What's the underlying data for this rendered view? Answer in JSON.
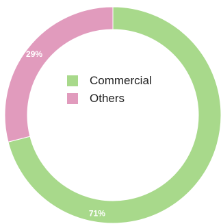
{
  "chart_data": {
    "type": "pie",
    "donut": true,
    "categories": [
      "Commercial",
      "Others"
    ],
    "values": [
      71,
      29
    ],
    "value_labels": [
      "71%",
      "29%"
    ],
    "colors": [
      "#a8d98b",
      "#e19bbd"
    ],
    "legend": {
      "placement": "center",
      "entries": [
        "Commercial",
        "Others"
      ]
    },
    "title": "",
    "start": "top",
    "direction": "clockwise"
  }
}
